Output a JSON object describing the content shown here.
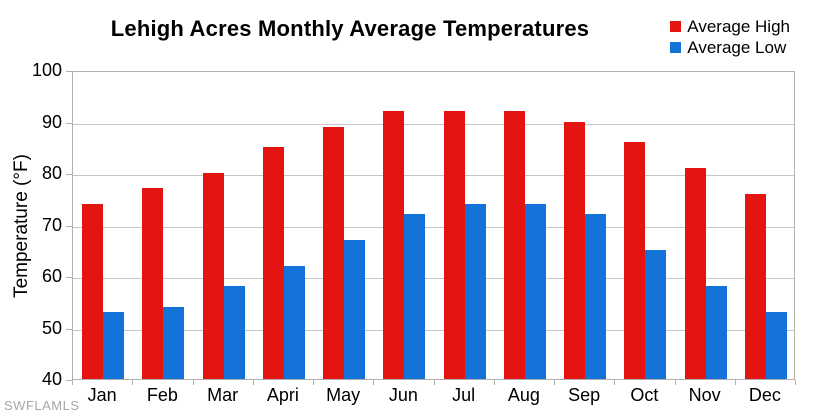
{
  "watermark": "SWFLAMLS",
  "colors": {
    "grid": "#c6c6c6",
    "axis": "#b0b0b0",
    "text": "#000000",
    "watermark": "#a6a6a2",
    "background": "#ffffff",
    "high": "#e41510",
    "low": "#1473d8"
  },
  "chart_data": {
    "type": "bar",
    "title": "Lehigh Acres Monthly Average Temperatures",
    "categories": [
      "Jan",
      "Feb",
      "Mar",
      "Apri",
      "May",
      "Jun",
      "Jul",
      "Aug",
      "Sep",
      "Oct",
      "Nov",
      "Dec"
    ],
    "series": [
      {
        "name": "Average High",
        "color": "#e41510",
        "values": [
          74,
          77,
          80,
          85,
          89,
          92,
          92,
          92,
          90,
          86,
          81,
          76
        ]
      },
      {
        "name": "Average Low",
        "color": "#1473d8",
        "values": [
          53,
          54,
          58,
          62,
          67,
          72,
          74,
          74,
          72,
          65,
          58,
          53
        ]
      }
    ],
    "xlabel": "",
    "ylabel": "Temperature (°F)",
    "ylim": [
      40,
      100
    ],
    "yticks": [
      40,
      50,
      60,
      70,
      80,
      90,
      100
    ],
    "grid": true,
    "legend_position": "top-right"
  }
}
